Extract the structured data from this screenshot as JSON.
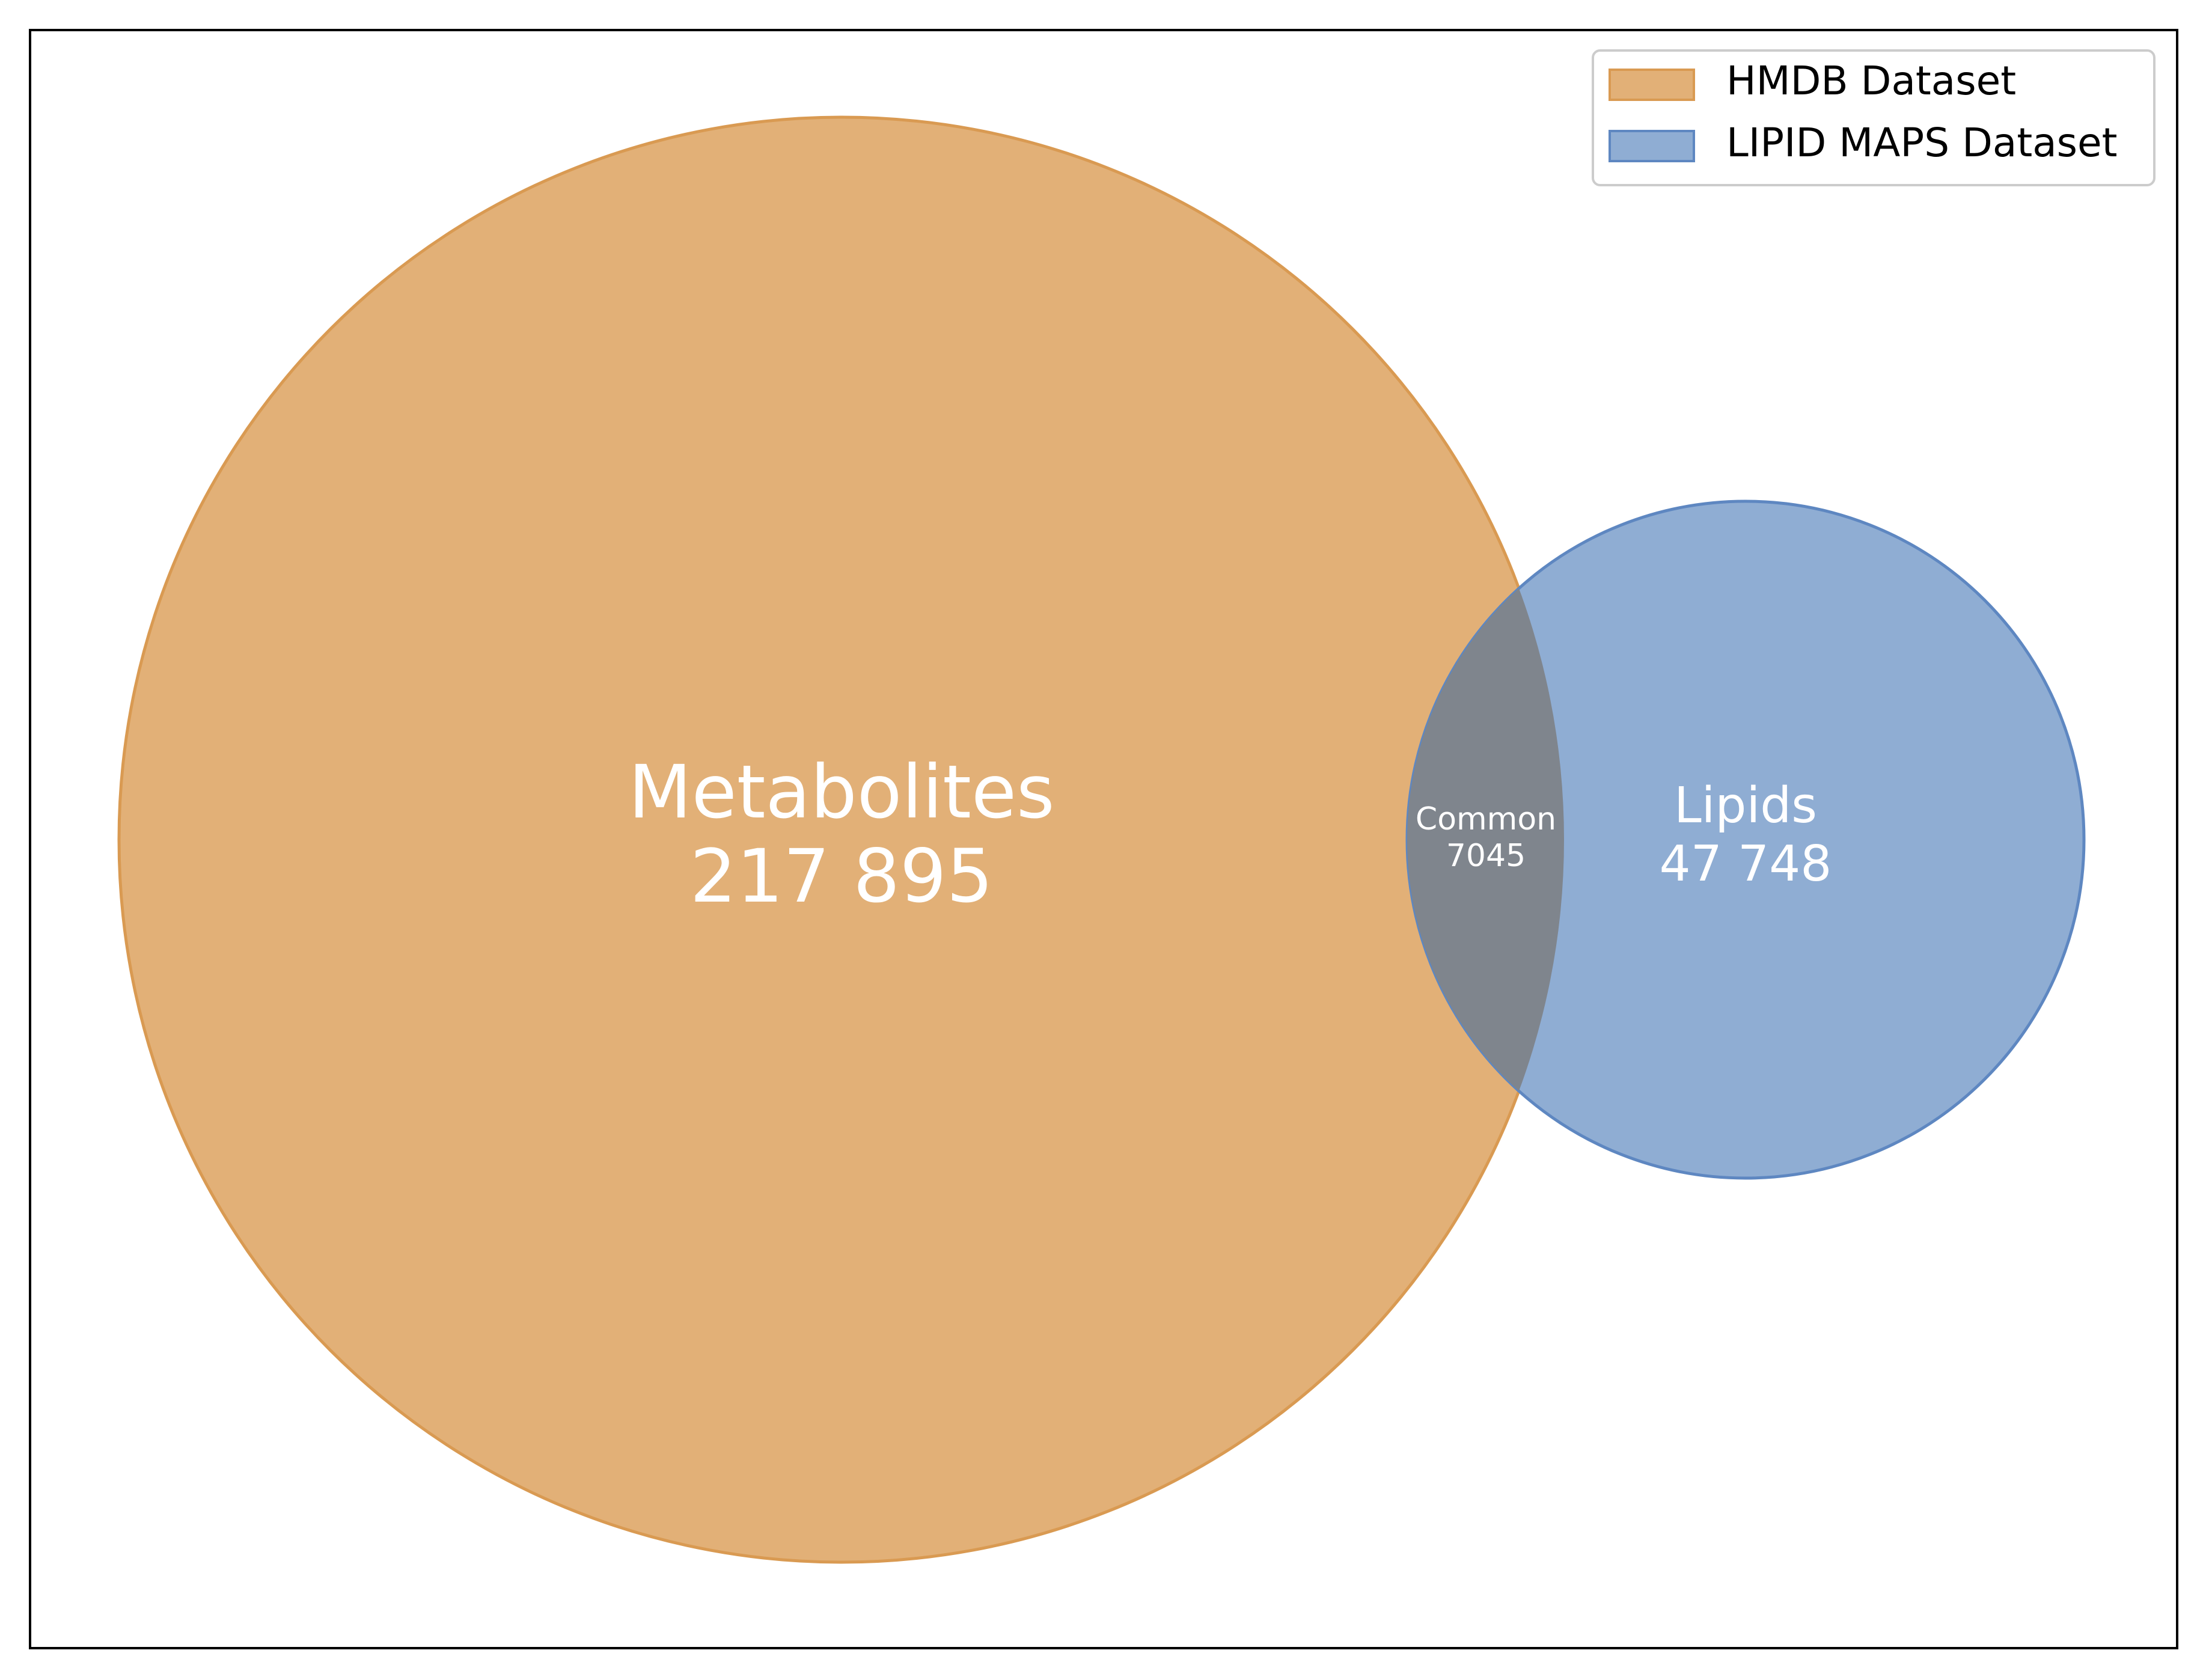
{
  "colors": {
    "hmdb_fill": "#E2B077",
    "hmdb_edge": "#D99A52",
    "lipid_fill": "#8FADD3",
    "lipid_edge": "#5E87C1",
    "overlap_fill": "#7F858D",
    "label_text": "#FFFFFF",
    "frame": "#000000"
  },
  "legend": {
    "placement": "top-right",
    "items": [
      {
        "label": "HMDB Dataset",
        "color_key": "hmdb"
      },
      {
        "label": "LIPID MAPS Dataset",
        "color_key": "lipid"
      }
    ]
  },
  "regions": {
    "hmdb_only": {
      "name": "Metabolites",
      "count": "217 895"
    },
    "intersection": {
      "name": "Common",
      "count": "7045"
    },
    "lipid_only": {
      "name": "Lipids",
      "count": "47 748"
    }
  }
}
